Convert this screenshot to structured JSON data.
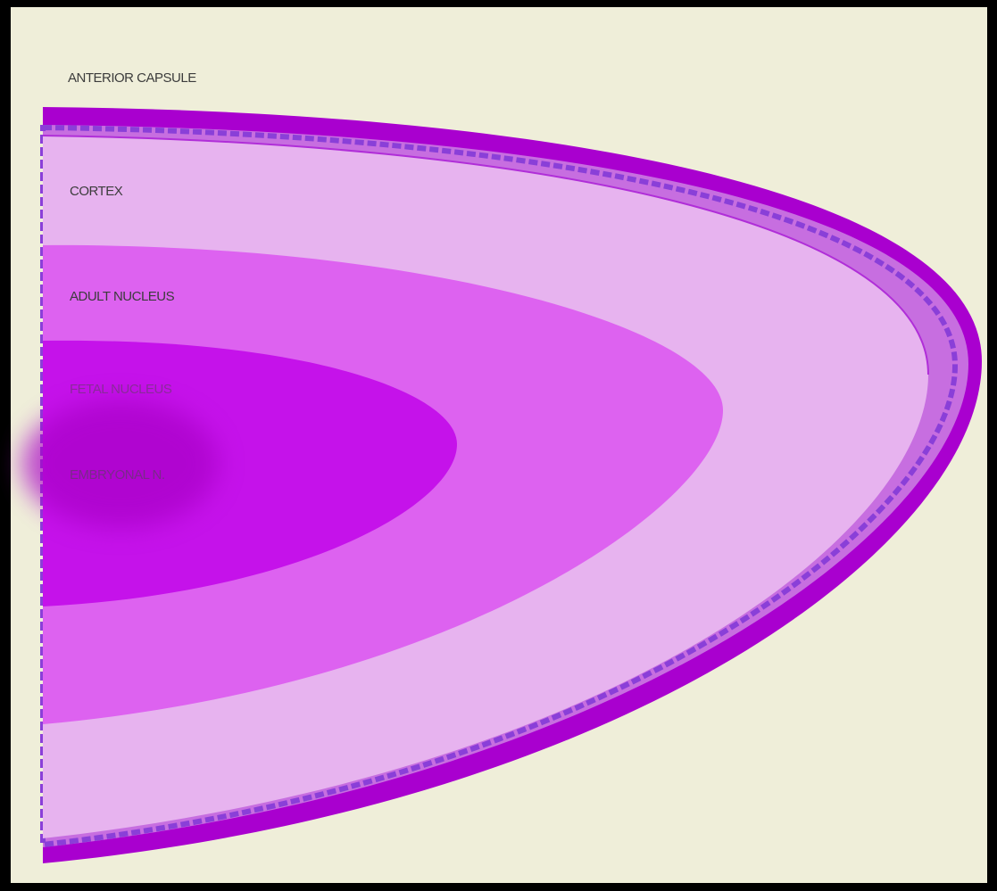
{
  "labels": {
    "anterior_capsule": "ANTERIOR CAPSULE",
    "cortex": "CORTEX",
    "adult_nucleus": "ADULT NUCLEUS",
    "fetal_nucleus": "FETAL NUCLEUS",
    "embryonal_nucleus": "EMBRYONAL N."
  }
}
